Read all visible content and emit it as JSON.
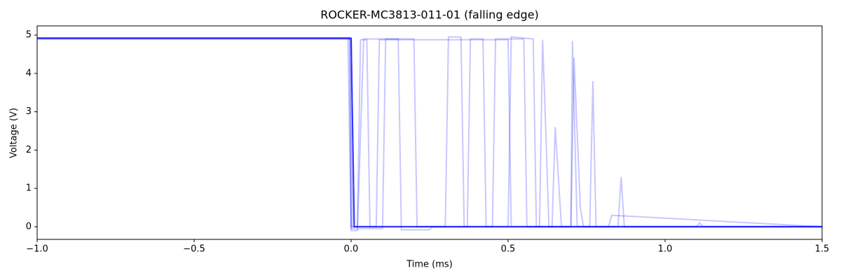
{
  "chart_data": {
    "type": "line",
    "title": "ROCKER-MC3813-011-01 (falling edge)",
    "x_label": "Time (ms)",
    "y_label": "Voltage (V)",
    "xlim": [
      -1.0,
      1.5
    ],
    "ylim": [
      -0.33,
      5.24
    ],
    "xticks": [
      {
        "value": -1.0,
        "label": "−1.0"
      },
      {
        "value": -0.5,
        "label": "−0.5"
      },
      {
        "value": 0,
        "label": "0.0"
      },
      0.5,
      {
        "value": 1.0,
        "label": "1.0"
      },
      1.5
    ],
    "yticks": [
      0,
      1,
      2,
      3,
      4,
      5
    ],
    "grid": false,
    "opacity": 0.22,
    "series": [
      {
        "color": "#0000ff",
        "x": [
          -1,
          -0.005,
          0.0,
          0.02,
          0.03,
          0.05,
          0.06,
          1.5
        ],
        "values": [
          4.92,
          4.92,
          0,
          0,
          4.88,
          4.88,
          0,
          0
        ]
      },
      {
        "color": "#0000ff",
        "x": [
          -1,
          -0.003,
          0,
          0.1,
          0.11,
          0.2,
          0.21,
          1.5
        ],
        "values": [
          4.93,
          4.93,
          -0.05,
          -0.05,
          4.9,
          4.9,
          0,
          0
        ]
      },
      {
        "color": "#0000ff",
        "x": [
          -1,
          0,
          0.01,
          0.3,
          0.31,
          0.35,
          0.36,
          1.5
        ],
        "values": [
          4.9,
          4.9,
          0,
          0,
          4.95,
          4.95,
          0,
          0
        ]
      },
      {
        "color": "#0000ff",
        "x": [
          -1,
          0,
          0.01,
          0.45,
          0.46,
          0.55,
          0.56,
          1.5
        ],
        "values": [
          4.92,
          4.92,
          0,
          0,
          4.9,
          4.9,
          0,
          0
        ]
      },
      {
        "color": "#0000ff",
        "x": [
          -1,
          0,
          0.01,
          0.6,
          0.61,
          0.62,
          0.63,
          0.7,
          0.705,
          0.72,
          1.5
        ],
        "values": [
          4.9,
          4.9,
          0,
          0,
          4.88,
          2.5,
          0,
          0,
          4.85,
          0,
          0
        ]
      },
      {
        "color": "#0000ff",
        "x": [
          -1,
          0,
          0.005,
          0.5,
          0.51,
          0.58,
          0.59,
          0.7,
          0.71,
          0.73,
          0.74,
          0.82,
          0.83,
          1.5
        ],
        "values": [
          4.92,
          4.92,
          0,
          0,
          4.95,
          4.9,
          0,
          0,
          4.4,
          0.5,
          0,
          0,
          0.3,
          0
        ]
      },
      {
        "color": "#0000ff",
        "x": [
          -1,
          -0.01,
          0,
          0.02,
          0.04,
          0.15,
          0.16,
          0.25,
          0.26,
          1.5
        ],
        "values": [
          4.92,
          4.92,
          -0.1,
          -0.1,
          4.9,
          4.9,
          -0.08,
          -0.08,
          0,
          0
        ]
      },
      {
        "color": "#0000ff",
        "x": [
          -1,
          0,
          0.01,
          0.37,
          0.38,
          0.42,
          0.43,
          0.64,
          0.65,
          0.67,
          1.5
        ],
        "values": [
          4.92,
          4.92,
          0,
          0,
          4.9,
          4.9,
          0,
          0,
          2.6,
          0,
          0
        ]
      },
      {
        "color": "#0000ff",
        "x": [
          -1,
          0,
          0.01,
          0.76,
          0.77,
          0.78,
          1.1,
          1.11,
          1.12,
          1.5
        ],
        "values": [
          4.92,
          4.92,
          0,
          0,
          3.8,
          0,
          0,
          0.1,
          0,
          0
        ]
      },
      {
        "color": "#0000ff",
        "x": [
          -1,
          0,
          0.01,
          0.08,
          0.09,
          0.5,
          0.51,
          0.85,
          0.86,
          0.87,
          1.5
        ],
        "values": [
          4.92,
          4.92,
          0,
          0,
          4.88,
          4.88,
          0,
          0,
          1.3,
          0,
          0
        ]
      }
    ]
  }
}
